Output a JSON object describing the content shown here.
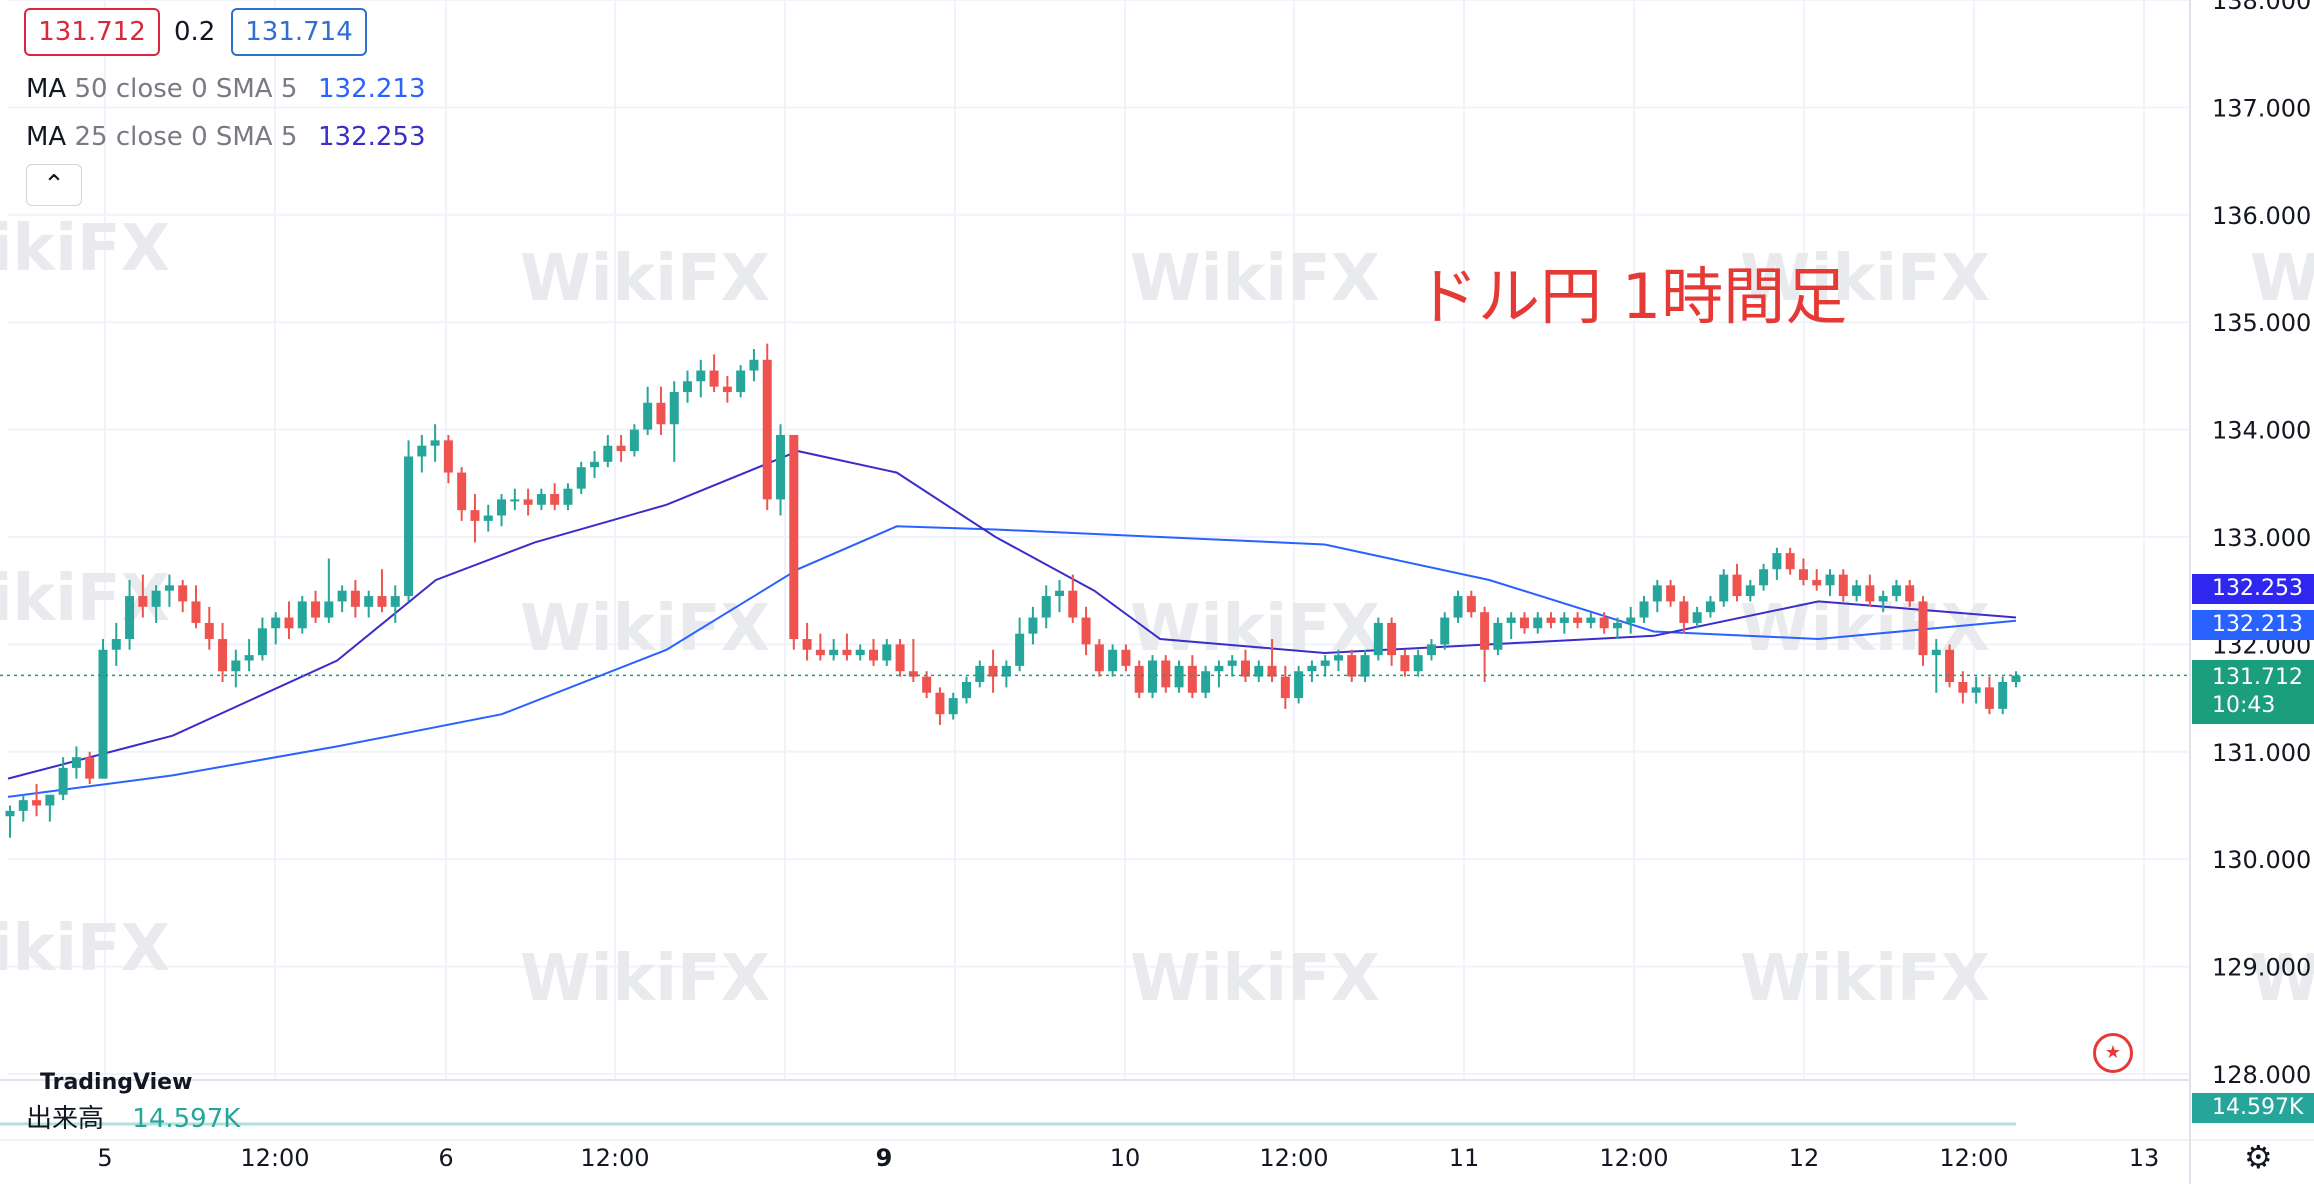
{
  "header": {
    "bid": "131.712",
    "spread": "0.2",
    "ask": "131.714",
    "indicators": [
      {
        "name": "MA",
        "params": "50 close 0 SMA 5",
        "value": "132.213",
        "color": "#2962ff"
      },
      {
        "name": "MA",
        "params": "25 close 0 SMA 5",
        "value": "132.253",
        "color": "#3b2dc9"
      }
    ],
    "collapse_icon": "chevron-up-icon",
    "collapse_glyph": "⌃"
  },
  "annotation": "ドル円 1時間足",
  "watermark": "WikiFX",
  "volume": {
    "label": "出来高",
    "value": "14.597K",
    "tag": "14.597K"
  },
  "logo": "TradingView",
  "price_labels": {
    "ma25": "132.253",
    "ma50": "132.213",
    "last": "131.712",
    "countdown": "10:43"
  },
  "settings_icon": "gear-icon",
  "flag_icon": "us-flag-icon",
  "colors": {
    "up": "#26a69a",
    "down": "#ef5350",
    "ma50": "#2962ff",
    "ma25": "#3b2dc9",
    "grid": "#f0f3fa",
    "last_line": "#1b9e7e"
  },
  "chart_data": {
    "type": "candlestick",
    "y_ticks": [
      "138.000",
      "137.000",
      "136.000",
      "135.000",
      "134.000",
      "133.000",
      "132.000",
      "131.000",
      "130.000",
      "129.000",
      "128.000"
    ],
    "ylim": [
      128,
      138
    ],
    "x_ticks": [
      "5",
      "12:00",
      "6",
      "12:00",
      "9",
      "10",
      "12:00",
      "11",
      "12:00",
      "12",
      "12:00",
      "13"
    ],
    "last_price": 131.712,
    "ma_series": [
      {
        "name": "MA 50 close 0 SMA 5",
        "x": [
          0,
          10,
          20,
          30,
          40,
          48,
          54,
          60,
          70,
          80,
          90,
          100,
          110,
          122
        ],
        "values": [
          130.58,
          130.78,
          131.05,
          131.35,
          131.95,
          132.7,
          133.1,
          133.07,
          133.0,
          132.93,
          132.6,
          132.12,
          132.05,
          132.22
        ]
      },
      {
        "name": "MA 25 close 0 SMA 5",
        "x": [
          0,
          10,
          20,
          26,
          32,
          40,
          48,
          54,
          60,
          66,
          70,
          80,
          90,
          100,
          110,
          122
        ],
        "values": [
          130.75,
          131.15,
          131.85,
          132.6,
          132.95,
          133.3,
          133.8,
          133.6,
          133.0,
          132.5,
          132.05,
          131.92,
          132.0,
          132.08,
          132.4,
          132.25
        ]
      }
    ],
    "candles": [
      [
        130.4,
        130.5,
        130.2,
        130.45
      ],
      [
        130.45,
        130.6,
        130.35,
        130.55
      ],
      [
        130.55,
        130.7,
        130.4,
        130.5
      ],
      [
        130.5,
        130.6,
        130.35,
        130.6
      ],
      [
        130.6,
        130.95,
        130.55,
        130.85
      ],
      [
        130.85,
        131.05,
        130.75,
        130.95
      ],
      [
        130.95,
        131.0,
        130.7,
        130.75
      ],
      [
        130.75,
        132.05,
        130.75,
        131.95
      ],
      [
        131.95,
        132.2,
        131.8,
        132.05
      ],
      [
        132.05,
        132.6,
        131.95,
        132.45
      ],
      [
        132.45,
        132.65,
        132.25,
        132.35
      ],
      [
        132.35,
        132.55,
        132.2,
        132.5
      ],
      [
        132.5,
        132.65,
        132.35,
        132.55
      ],
      [
        132.55,
        132.6,
        132.3,
        132.4
      ],
      [
        132.4,
        132.55,
        132.15,
        132.2
      ],
      [
        132.2,
        132.35,
        131.95,
        132.05
      ],
      [
        132.05,
        132.2,
        131.65,
        131.75
      ],
      [
        131.75,
        131.95,
        131.6,
        131.85
      ],
      [
        131.85,
        132.05,
        131.75,
        131.9
      ],
      [
        131.9,
        132.25,
        131.85,
        132.15
      ],
      [
        132.15,
        132.3,
        132.0,
        132.25
      ],
      [
        132.25,
        132.4,
        132.05,
        132.15
      ],
      [
        132.15,
        132.45,
        132.1,
        132.4
      ],
      [
        132.4,
        132.5,
        132.2,
        132.25
      ],
      [
        132.25,
        132.8,
        132.2,
        132.4
      ],
      [
        132.4,
        132.55,
        132.3,
        132.5
      ],
      [
        132.5,
        132.6,
        132.25,
        132.35
      ],
      [
        132.35,
        132.5,
        132.25,
        132.45
      ],
      [
        132.45,
        132.7,
        132.3,
        132.35
      ],
      [
        132.35,
        132.55,
        132.2,
        132.45
      ],
      [
        132.45,
        133.9,
        132.4,
        133.75
      ],
      [
        133.75,
        133.95,
        133.6,
        133.85
      ],
      [
        133.85,
        134.05,
        133.7,
        133.9
      ],
      [
        133.9,
        133.95,
        133.5,
        133.6
      ],
      [
        133.6,
        133.65,
        133.15,
        133.25
      ],
      [
        133.25,
        133.4,
        132.95,
        133.15
      ],
      [
        133.15,
        133.3,
        133.05,
        133.2
      ],
      [
        133.2,
        133.4,
        133.1,
        133.35
      ],
      [
        133.35,
        133.45,
        133.25,
        133.35
      ],
      [
        133.35,
        133.45,
        133.2,
        133.3
      ],
      [
        133.3,
        133.45,
        133.25,
        133.4
      ],
      [
        133.4,
        133.5,
        133.25,
        133.3
      ],
      [
        133.3,
        133.5,
        133.25,
        133.45
      ],
      [
        133.45,
        133.7,
        133.4,
        133.65
      ],
      [
        133.65,
        133.8,
        133.55,
        133.7
      ],
      [
        133.7,
        133.95,
        133.65,
        133.85
      ],
      [
        133.85,
        133.95,
        133.7,
        133.8
      ],
      [
        133.8,
        134.05,
        133.75,
        134.0
      ],
      [
        134.0,
        134.4,
        133.95,
        134.25
      ],
      [
        134.25,
        134.4,
        133.95,
        134.05
      ],
      [
        134.05,
        134.45,
        133.7,
        134.35
      ],
      [
        134.35,
        134.55,
        134.25,
        134.45
      ],
      [
        134.45,
        134.65,
        134.3,
        134.55
      ],
      [
        134.55,
        134.7,
        134.35,
        134.4
      ],
      [
        134.4,
        134.5,
        134.25,
        134.35
      ],
      [
        134.35,
        134.6,
        134.3,
        134.55
      ],
      [
        134.55,
        134.75,
        134.45,
        134.65
      ],
      [
        134.65,
        134.8,
        133.25,
        133.35
      ],
      [
        133.35,
        134.05,
        133.2,
        133.95
      ],
      [
        133.95,
        133.95,
        131.95,
        132.05
      ],
      [
        132.05,
        132.2,
        131.85,
        131.95
      ],
      [
        131.95,
        132.1,
        131.85,
        131.9
      ],
      [
        131.9,
        132.05,
        131.85,
        131.95
      ],
      [
        131.95,
        132.1,
        131.85,
        131.9
      ],
      [
        131.9,
        132.0,
        131.85,
        131.95
      ],
      [
        131.95,
        132.05,
        131.8,
        131.85
      ],
      [
        131.85,
        132.05,
        131.8,
        132.0
      ],
      [
        132.0,
        132.05,
        131.7,
        131.75
      ],
      [
        131.75,
        132.05,
        131.65,
        131.7
      ],
      [
        131.7,
        131.75,
        131.5,
        131.55
      ],
      [
        131.55,
        131.6,
        131.25,
        131.35
      ],
      [
        131.35,
        131.55,
        131.3,
        131.5
      ],
      [
        131.5,
        131.7,
        131.45,
        131.65
      ],
      [
        131.65,
        131.85,
        131.6,
        131.8
      ],
      [
        131.8,
        131.95,
        131.55,
        131.7
      ],
      [
        131.7,
        131.85,
        131.6,
        131.8
      ],
      [
        131.8,
        132.25,
        131.75,
        132.1
      ],
      [
        132.1,
        132.35,
        132.0,
        132.25
      ],
      [
        132.25,
        132.55,
        132.15,
        132.45
      ],
      [
        132.45,
        132.6,
        132.3,
        132.5
      ],
      [
        132.5,
        132.65,
        132.2,
        132.25
      ],
      [
        132.25,
        132.35,
        131.9,
        132.0
      ],
      [
        132.0,
        132.05,
        131.7,
        131.75
      ],
      [
        131.75,
        132.0,
        131.7,
        131.95
      ],
      [
        131.95,
        132.0,
        131.75,
        131.8
      ],
      [
        131.8,
        131.85,
        131.5,
        131.55
      ],
      [
        131.55,
        131.9,
        131.5,
        131.85
      ],
      [
        131.85,
        131.9,
        131.55,
        131.6
      ],
      [
        131.6,
        131.85,
        131.55,
        131.8
      ],
      [
        131.8,
        131.9,
        131.5,
        131.55
      ],
      [
        131.55,
        131.8,
        131.5,
        131.75
      ],
      [
        131.75,
        131.85,
        131.6,
        131.8
      ],
      [
        131.8,
        131.9,
        131.7,
        131.85
      ],
      [
        131.85,
        131.95,
        131.65,
        131.7
      ],
      [
        131.7,
        131.85,
        131.65,
        131.8
      ],
      [
        131.8,
        132.05,
        131.65,
        131.7
      ],
      [
        131.7,
        131.8,
        131.4,
        131.5
      ],
      [
        131.5,
        131.8,
        131.45,
        131.75
      ],
      [
        131.75,
        131.85,
        131.65,
        131.8
      ],
      [
        131.8,
        131.9,
        131.7,
        131.85
      ],
      [
        131.85,
        131.95,
        131.75,
        131.9
      ],
      [
        131.9,
        131.95,
        131.65,
        131.7
      ],
      [
        131.7,
        131.95,
        131.65,
        131.9
      ],
      [
        131.9,
        132.25,
        131.85,
        132.2
      ],
      [
        132.2,
        132.25,
        131.8,
        131.9
      ],
      [
        131.9,
        131.95,
        131.7,
        131.75
      ],
      [
        131.75,
        131.95,
        131.7,
        131.9
      ],
      [
        131.9,
        132.05,
        131.85,
        132.0
      ],
      [
        132.0,
        132.3,
        131.95,
        132.25
      ],
      [
        132.25,
        132.5,
        132.2,
        132.45
      ],
      [
        132.45,
        132.5,
        132.25,
        132.3
      ],
      [
        132.3,
        132.35,
        131.65,
        131.95
      ],
      [
        131.95,
        132.25,
        131.9,
        132.2
      ],
      [
        132.2,
        132.3,
        132.05,
        132.25
      ],
      [
        132.25,
        132.3,
        132.1,
        132.15
      ],
      [
        132.15,
        132.3,
        132.1,
        132.25
      ],
      [
        132.25,
        132.3,
        132.15,
        132.2
      ],
      [
        132.2,
        132.3,
        132.1,
        132.25
      ],
      [
        132.25,
        132.3,
        132.15,
        132.2
      ],
      [
        132.2,
        132.3,
        132.15,
        132.25
      ],
      [
        132.25,
        132.3,
        132.1,
        132.15
      ],
      [
        132.15,
        132.25,
        132.05,
        132.2
      ],
      [
        132.2,
        132.35,
        132.1,
        132.25
      ],
      [
        132.25,
        132.45,
        132.2,
        132.4
      ],
      [
        132.4,
        132.6,
        132.3,
        132.55
      ],
      [
        132.55,
        132.6,
        132.35,
        132.4
      ],
      [
        132.4,
        132.45,
        132.1,
        132.2
      ],
      [
        132.2,
        132.35,
        132.15,
        132.3
      ],
      [
        132.3,
        132.45,
        132.25,
        132.4
      ],
      [
        132.4,
        132.7,
        132.35,
        132.65
      ],
      [
        132.65,
        132.75,
        132.4,
        132.45
      ],
      [
        132.45,
        132.6,
        132.4,
        132.55
      ],
      [
        132.55,
        132.75,
        132.5,
        132.7
      ],
      [
        132.7,
        132.9,
        132.6,
        132.85
      ],
      [
        132.85,
        132.9,
        132.65,
        132.7
      ],
      [
        132.7,
        132.8,
        132.55,
        132.6
      ],
      [
        132.6,
        132.7,
        132.5,
        132.55
      ],
      [
        132.55,
        132.7,
        132.45,
        132.65
      ],
      [
        132.65,
        132.7,
        132.4,
        132.45
      ],
      [
        132.45,
        132.6,
        132.4,
        132.55
      ],
      [
        132.55,
        132.65,
        132.35,
        132.4
      ],
      [
        132.4,
        132.5,
        132.3,
        132.45
      ],
      [
        132.45,
        132.6,
        132.4,
        132.55
      ],
      [
        132.55,
        132.6,
        132.35,
        132.4
      ],
      [
        132.4,
        132.45,
        131.8,
        131.9
      ],
      [
        131.9,
        132.05,
        131.55,
        131.95
      ],
      [
        131.95,
        132.0,
        131.6,
        131.65
      ],
      [
        131.65,
        131.75,
        131.45,
        131.55
      ],
      [
        131.55,
        131.7,
        131.45,
        131.6
      ],
      [
        131.6,
        131.7,
        131.35,
        131.4
      ],
      [
        131.4,
        131.7,
        131.35,
        131.65
      ],
      [
        131.65,
        131.75,
        131.6,
        131.71
      ]
    ]
  }
}
